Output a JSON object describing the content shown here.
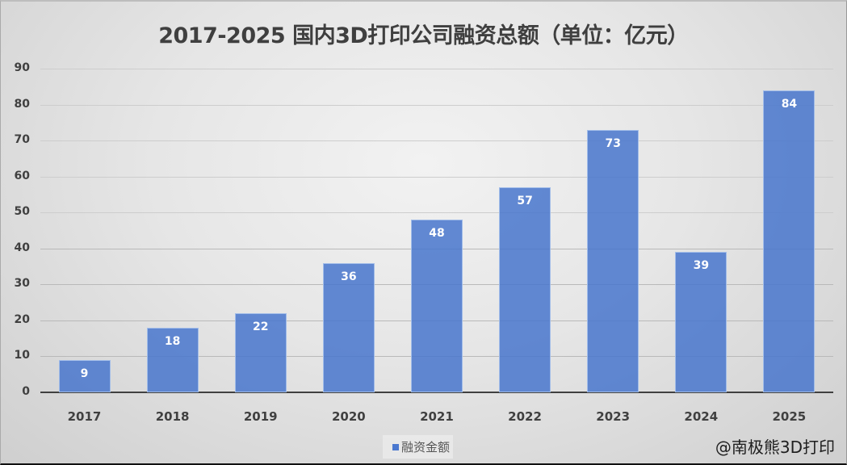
{
  "chart_data": {
    "type": "bar",
    "title": "2017-2025 国内3D打印公司融资总额（单位：亿元）",
    "categories": [
      "2017",
      "2018",
      "2019",
      "2020",
      "2021",
      "2022",
      "2023",
      "2024",
      "2025"
    ],
    "series": [
      {
        "name": "融资金额",
        "values": [
          9,
          18,
          22,
          36,
          48,
          57,
          73,
          39,
          84
        ],
        "color": "#4a78cf"
      }
    ],
    "xlabel": "",
    "ylabel": "",
    "ylim": [
      0,
      90
    ],
    "yticks": [
      0,
      10,
      20,
      30,
      40,
      50,
      60,
      70,
      80,
      90
    ],
    "grid": true,
    "legend_position": "bottom",
    "data_labels": true
  },
  "legend": {
    "label": "融资金额"
  },
  "watermark": "@南极熊3D打印"
}
